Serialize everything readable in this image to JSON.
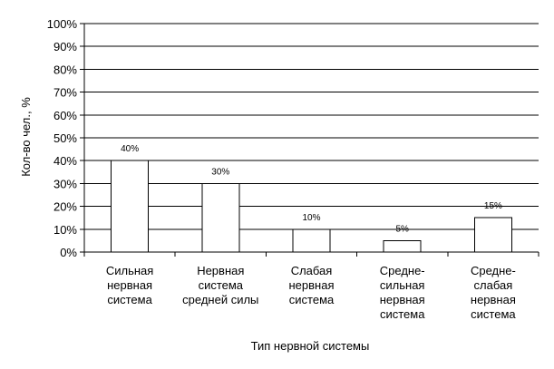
{
  "chart_data": {
    "type": "bar",
    "title": "",
    "xlabel": "Тип нервной системы",
    "ylabel": "Кол-во чел., %",
    "ylim": [
      0,
      100
    ],
    "ytick_step": 10,
    "ytick_labels": [
      "0%",
      "10%",
      "20%",
      "30%",
      "40%",
      "50%",
      "60%",
      "70%",
      "80%",
      "90%",
      "100%"
    ],
    "grid": true,
    "legend": "none",
    "categories": [
      [
        "Сильная",
        "нервная",
        "система"
      ],
      [
        "Нервная",
        "система",
        "средней силы"
      ],
      [
        "Слабая",
        "нервная",
        "система"
      ],
      [
        "Средне-",
        "сильная",
        "нервная",
        "система"
      ],
      [
        "Средне-",
        "слабая",
        "нервная",
        "система"
      ]
    ],
    "values": [
      40,
      30,
      10,
      5,
      15
    ],
    "data_labels": [
      "40%",
      "30%",
      "10%",
      "5%",
      "15%"
    ],
    "colors": {
      "bar_fill": "#ffffff",
      "bar_stroke": "#000000",
      "grid": "#000000"
    }
  }
}
